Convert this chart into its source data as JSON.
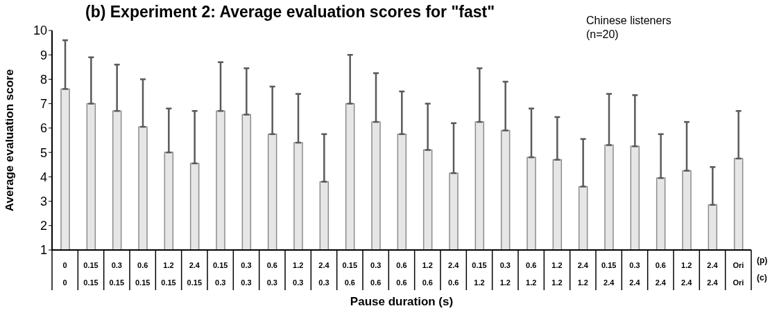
{
  "chart_data": {
    "type": "bar",
    "title": "(b) Experiment 2: Average evaluation scores for \"fast\"",
    "xlabel": "Pause duration (s)",
    "ylabel": "Average evaluation score",
    "annotations": [
      "Chinese listeners\n(n=20)",
      "(p)",
      "(c)"
    ],
    "categories": [
      "0\n0",
      "0.15\n0.15",
      "0.3\n0.15",
      "0.6\n0.15",
      "1.2\n0.15",
      "2.4\n0.15",
      "0.15\n0.3",
      "0.3\n0.3",
      "0.6\n0.3",
      "1.2\n0.3",
      "2.4\n0.3",
      "0.15\n0.6",
      "0.3\n0.6",
      "0.6\n0.6",
      "1.2\n0.6",
      "2.4\n0.6",
      "0.15\n1.2",
      "0.3\n1.2",
      "0.6\n1.2",
      "1.2\n1.2",
      "2.4\n1.2",
      "0.15\n2.4",
      "0.3\n2.4",
      "0.6\n2.4",
      "1.2\n2.4",
      "2.4\n2.4",
      "Ori\nOri"
    ],
    "values": [
      7.6,
      7.0,
      6.7,
      6.05,
      5.0,
      4.55,
      6.7,
      6.55,
      5.75,
      5.4,
      3.8,
      7.0,
      6.25,
      5.75,
      5.1,
      4.15,
      6.25,
      5.9,
      4.8,
      4.7,
      3.6,
      5.3,
      5.25,
      3.95,
      4.25,
      2.85,
      4.75
    ],
    "errors": [
      [
        7.6,
        9.6
      ],
      [
        7.0,
        8.9
      ],
      [
        6.7,
        8.6
      ],
      [
        6.05,
        8.0
      ],
      [
        5.0,
        6.8
      ],
      [
        4.55,
        6.7
      ],
      [
        6.7,
        8.7
      ],
      [
        6.55,
        8.45
      ],
      [
        5.75,
        7.7
      ],
      [
        5.4,
        7.4
      ],
      [
        3.8,
        5.75
      ],
      [
        7.0,
        9.0
      ],
      [
        6.25,
        8.25
      ],
      [
        5.75,
        7.5
      ],
      [
        5.1,
        7.0
      ],
      [
        4.15,
        6.2
      ],
      [
        6.25,
        8.45
      ],
      [
        5.9,
        7.9
      ],
      [
        4.8,
        6.8
      ],
      [
        4.7,
        6.45
      ],
      [
        3.6,
        5.55
      ],
      [
        5.3,
        7.4
      ],
      [
        5.25,
        7.35
      ],
      [
        3.95,
        5.75
      ],
      [
        4.25,
        6.25
      ],
      [
        2.85,
        4.4
      ],
      [
        4.75,
        6.7
      ]
    ],
    "color": "#e6e6e6",
    "ylim": [
      1,
      10
    ],
    "yticks": [
      1,
      2,
      3,
      4,
      5,
      6,
      7,
      8,
      9,
      10
    ],
    "grid": false
  }
}
